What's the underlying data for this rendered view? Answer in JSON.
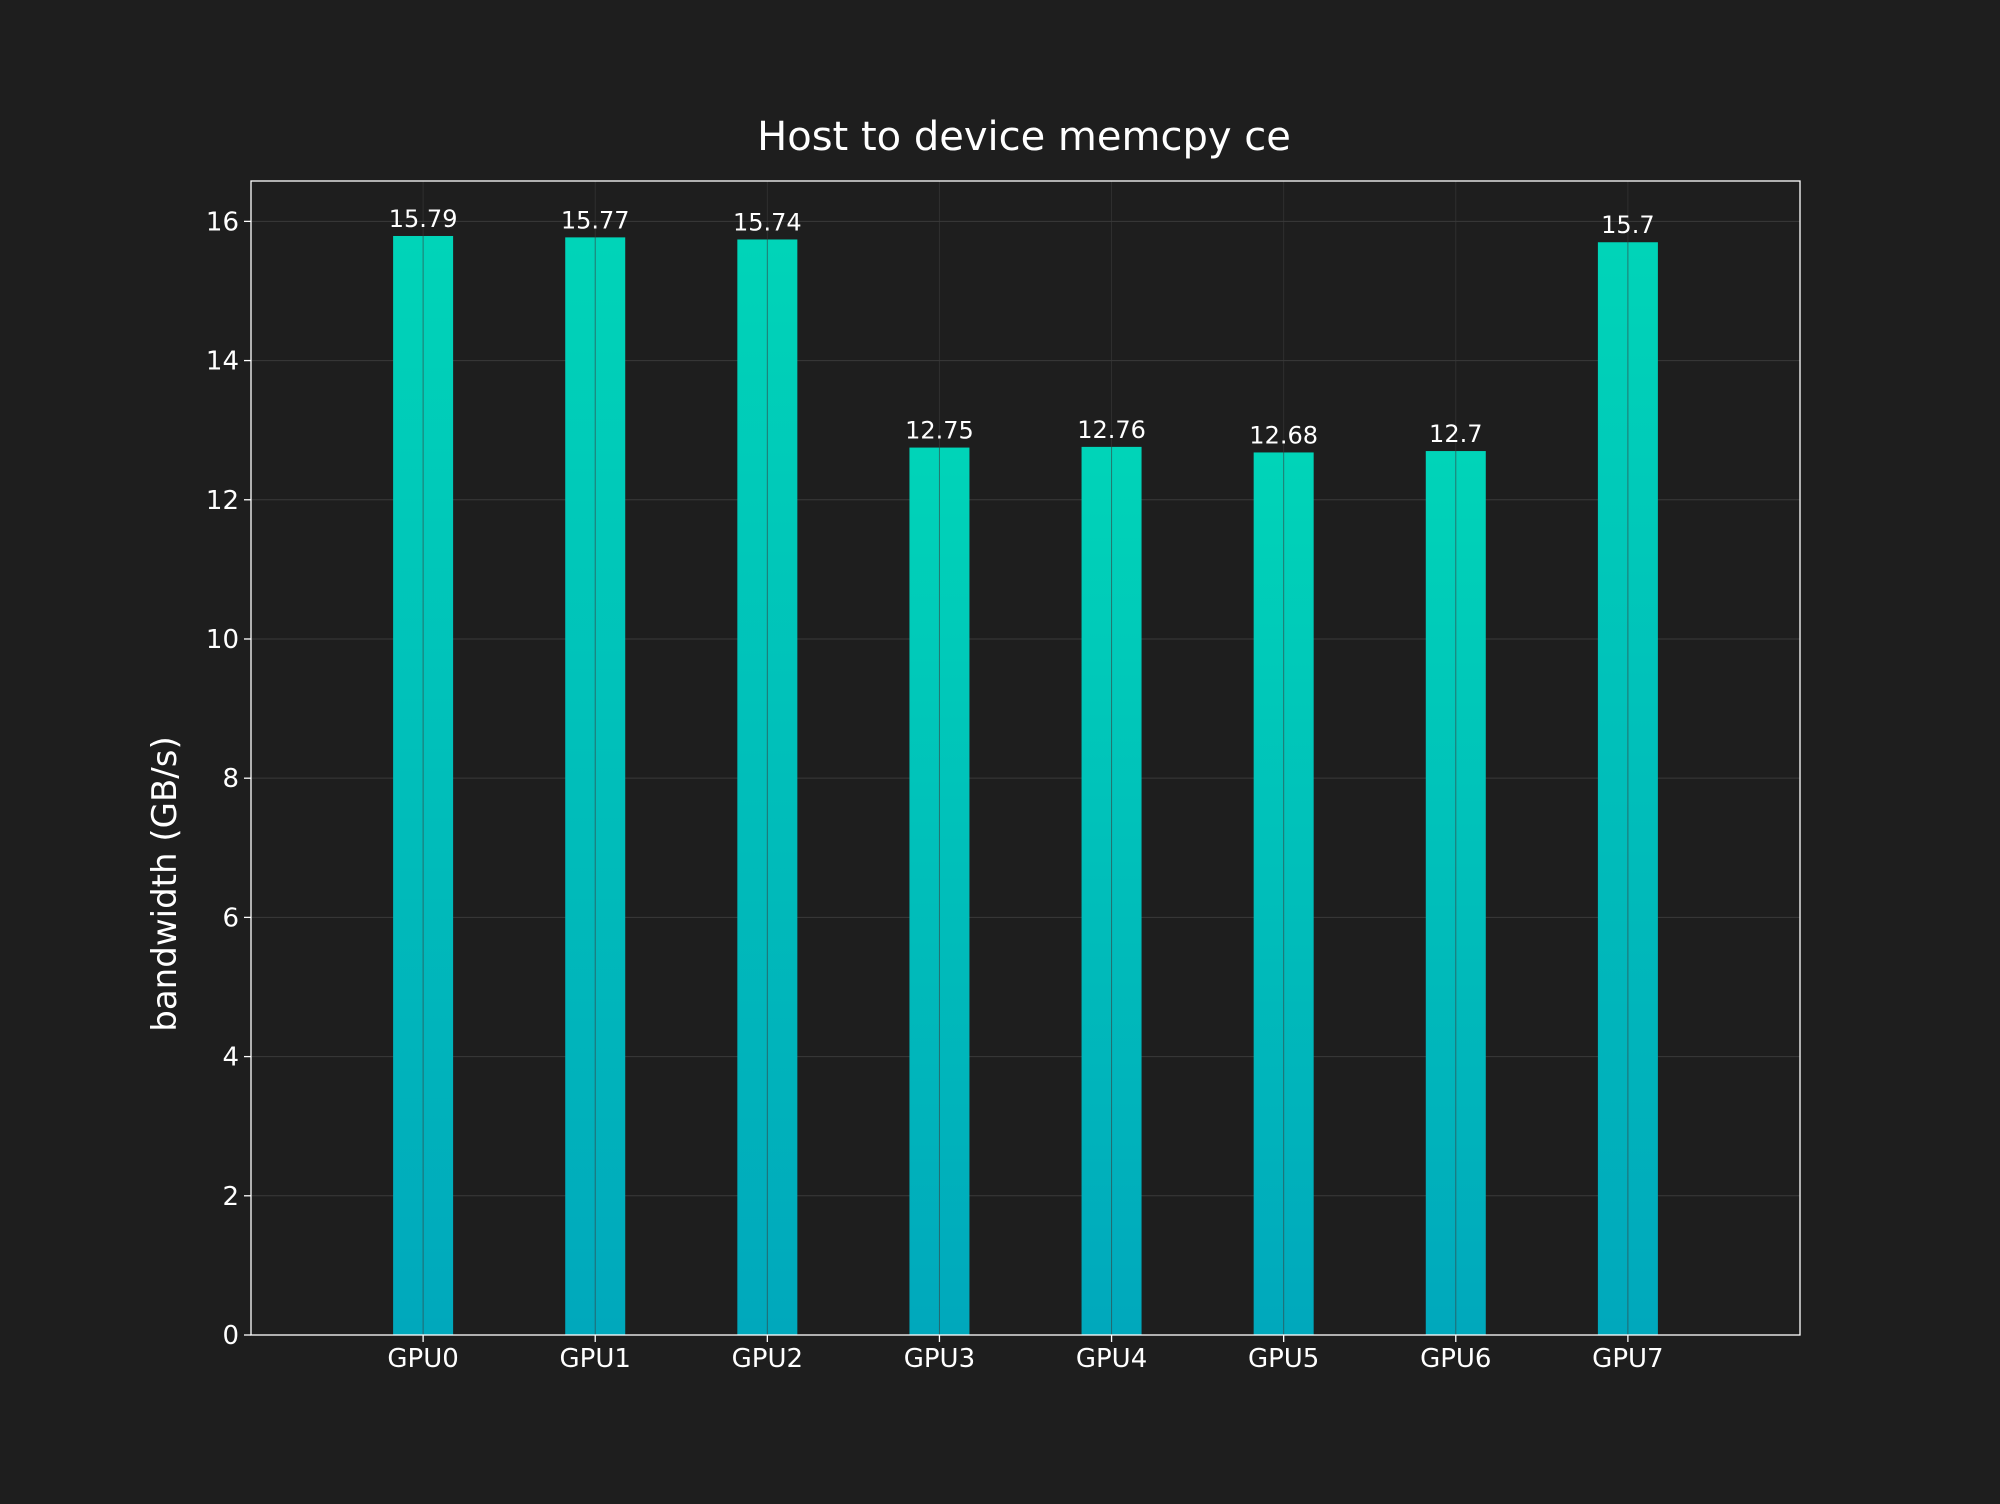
{
  "chart_data": {
    "type": "bar",
    "title": "Host to device memcpy ce",
    "xlabel": "",
    "ylabel": "bandwidth (GB/s)",
    "categories": [
      "GPU0",
      "GPU1",
      "GPU2",
      "GPU3",
      "GPU4",
      "GPU5",
      "GPU6",
      "GPU7"
    ],
    "values": [
      15.79,
      15.77,
      15.74,
      12.75,
      12.76,
      12.68,
      12.7,
      15.7
    ],
    "value_labels": [
      "15.79",
      "15.77",
      "15.74",
      "12.75",
      "12.76",
      "12.68",
      "12.7",
      "15.7"
    ],
    "ylim": [
      0,
      16.58
    ],
    "yticks": [
      0,
      2,
      4,
      6,
      8,
      10,
      12,
      14,
      16
    ],
    "ytick_labels": [
      "0",
      "2",
      "4",
      "6",
      "8",
      "10",
      "12",
      "14",
      "16"
    ],
    "grid": true,
    "legend": "none",
    "colors": {
      "background": "#1e1e1e",
      "bar_top": "#00d4b8",
      "bar_bottom": "#00a8bc",
      "grid": "#3a3a3a",
      "axes": "#ffffff",
      "text": "#ffffff"
    }
  }
}
